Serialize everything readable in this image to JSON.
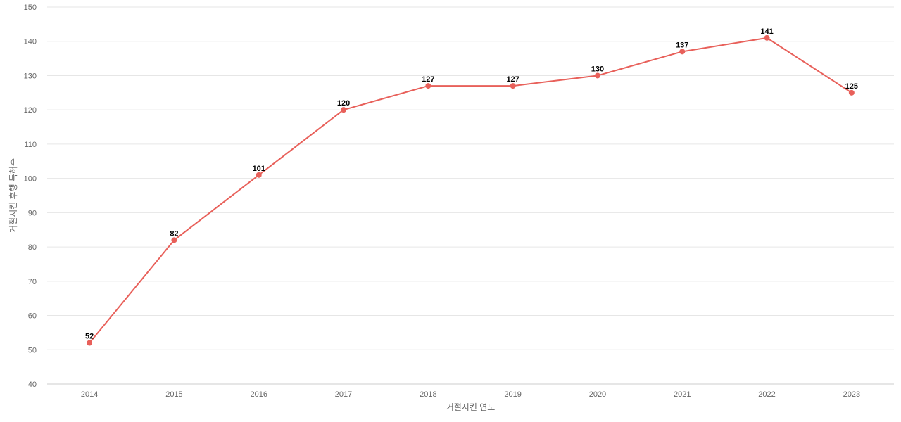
{
  "chart_data": {
    "type": "line",
    "title": "",
    "xlabel": "거절시킨 연도",
    "ylabel": "거절시킨 후행 특허수",
    "categories": [
      "2014",
      "2015",
      "2016",
      "2017",
      "2018",
      "2019",
      "2020",
      "2021",
      "2022",
      "2023"
    ],
    "series": [
      {
        "values": [
          52,
          82,
          101,
          120,
          127,
          127,
          130,
          137,
          141,
          125
        ]
      }
    ],
    "ylim": [
      40,
      150
    ],
    "yticks": [
      40,
      50,
      60,
      70,
      80,
      90,
      100,
      110,
      120,
      130,
      140,
      150
    ],
    "grid": true,
    "legend": "none",
    "colors": {
      "line": "#e8605a",
      "grid": "#e6e6e6",
      "text": "#666666"
    }
  }
}
